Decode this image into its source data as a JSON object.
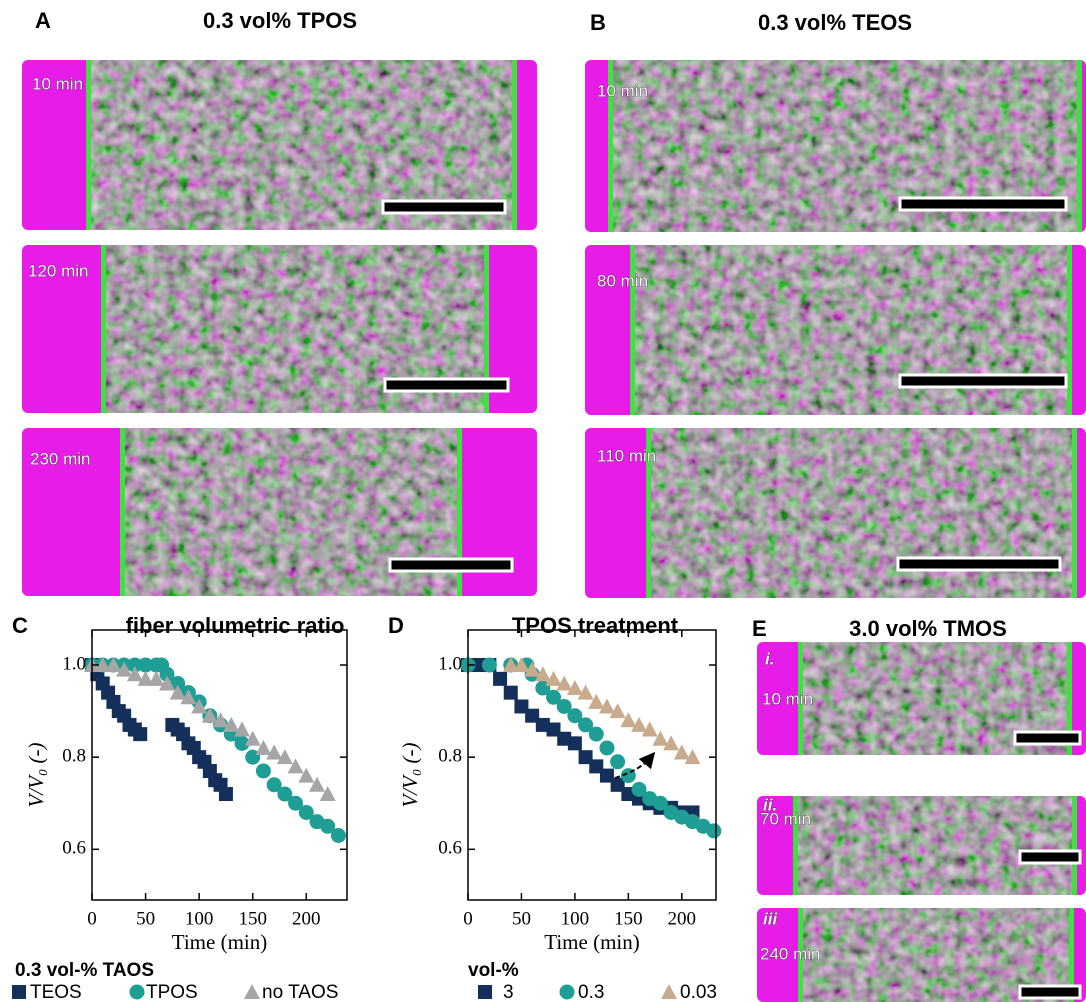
{
  "panels": {
    "A": {
      "label": "A",
      "title": "0.3 vol% TPOS",
      "images": [
        "10 min",
        "120 min",
        "230 min"
      ]
    },
    "B": {
      "label": "B",
      "title": "0.3 vol% TEOS",
      "images": [
        "10 min",
        "80 min",
        "110 min"
      ]
    },
    "E": {
      "label": "E",
      "title": "3.0 vol% TMOS",
      "images": [
        {
          "index": "i.",
          "time": "10 min"
        },
        {
          "index": "ii.",
          "time": "70 min"
        },
        {
          "index": "iii",
          "time": "240 min"
        }
      ]
    }
  },
  "chart_data": [
    {
      "type": "scatter",
      "panel_label": "C",
      "title": "fiber volumetric ratio",
      "x_label": "Time (min)",
      "y_label": "V/V₀ (-)",
      "xlim": [
        0,
        238
      ],
      "ylim": [
        0.49,
        1.076
      ],
      "xticks": [
        0,
        50,
        100,
        150,
        200
      ],
      "yticks": [
        {
          "value": 1,
          "label": "1.0"
        },
        0.8,
        0.6
      ],
      "legend_title": "0.3 vol-% TAOS",
      "series": [
        {
          "name": "TEOS",
          "color": "#14305a",
          "marker": "square",
          "x": [
            0,
            5,
            10,
            15,
            20,
            25,
            30,
            35,
            40,
            45,
            75,
            80,
            85,
            90,
            95,
            100,
            105,
            110,
            115,
            120,
            125
          ],
          "values": [
            1.0,
            0.98,
            0.96,
            0.94,
            0.92,
            0.9,
            0.89,
            0.87,
            0.86,
            0.85,
            0.87,
            0.86,
            0.85,
            0.83,
            0.82,
            0.8,
            0.79,
            0.77,
            0.75,
            0.74,
            0.72
          ]
        },
        {
          "name": "TPOS",
          "color": "#1e9e94",
          "marker": "circle",
          "x": [
            0,
            10,
            20,
            30,
            40,
            50,
            60,
            65,
            70,
            80,
            90,
            100,
            110,
            120,
            130,
            140,
            150,
            160,
            170,
            180,
            190,
            200,
            210,
            220,
            230
          ],
          "values": [
            1.0,
            1.0,
            1.0,
            1.0,
            1.0,
            1.0,
            1.0,
            1.0,
            0.98,
            0.96,
            0.94,
            0.92,
            0.89,
            0.87,
            0.85,
            0.83,
            0.8,
            0.77,
            0.74,
            0.72,
            0.7,
            0.68,
            0.66,
            0.65,
            0.63
          ]
        },
        {
          "name": "no TAOS",
          "color": "#a6a6a6",
          "marker": "triangle",
          "x": [
            0,
            10,
            20,
            30,
            40,
            50,
            60,
            70,
            80,
            90,
            100,
            110,
            120,
            130,
            140,
            150,
            160,
            170,
            180,
            190,
            200,
            210,
            220
          ],
          "values": [
            1.0,
            1.0,
            1.0,
            0.99,
            0.98,
            0.97,
            0.97,
            0.96,
            0.94,
            0.93,
            0.91,
            0.89,
            0.88,
            0.87,
            0.86,
            0.84,
            0.82,
            0.81,
            0.8,
            0.78,
            0.76,
            0.74,
            0.72
          ]
        }
      ]
    },
    {
      "type": "scatter",
      "panel_label": "D",
      "title": "TPOS treatment",
      "x_label": "Time (min)",
      "y_label": "V/V₀ (-)",
      "xlim": [
        0,
        232
      ],
      "ylim": [
        0.49,
        1.076
      ],
      "xticks": [
        0,
        50,
        100,
        150,
        200
      ],
      "yticks": [
        {
          "value": 1,
          "label": "1.0"
        },
        0.8,
        0.6
      ],
      "legend_title": "vol-%",
      "series": [
        {
          "name": "3",
          "color": "#14305a",
          "marker": "square",
          "x": [
            0,
            10,
            20,
            30,
            40,
            50,
            60,
            70,
            80,
            90,
            100,
            110,
            120,
            130,
            140,
            150,
            160,
            170,
            180,
            190,
            200,
            210
          ],
          "values": [
            1.0,
            1.0,
            1.0,
            0.97,
            0.94,
            0.91,
            0.89,
            0.87,
            0.86,
            0.84,
            0.83,
            0.8,
            0.78,
            0.76,
            0.74,
            0.72,
            0.71,
            0.7,
            0.69,
            0.69,
            0.68,
            0.68
          ]
        },
        {
          "name": "0.3",
          "color": "#1e9e94",
          "marker": "circle",
          "x": [
            0,
            20,
            40,
            55,
            60,
            70,
            80,
            90,
            100,
            110,
            120,
            130,
            140,
            150,
            160,
            170,
            180,
            190,
            200,
            210,
            220,
            230
          ],
          "values": [
            1.0,
            1.0,
            1.0,
            1.0,
            0.98,
            0.95,
            0.93,
            0.91,
            0.89,
            0.87,
            0.85,
            0.82,
            0.79,
            0.76,
            0.73,
            0.71,
            0.7,
            0.68,
            0.67,
            0.66,
            0.65,
            0.64
          ]
        },
        {
          "name": "0.03",
          "color": "#c8ab8c",
          "marker": "triangle",
          "x": [
            40,
            50,
            60,
            70,
            80,
            90,
            100,
            110,
            120,
            130,
            140,
            150,
            160,
            170,
            180,
            190,
            200,
            210
          ],
          "values": [
            1.0,
            1.0,
            0.99,
            0.98,
            0.97,
            0.96,
            0.95,
            0.94,
            0.92,
            0.91,
            0.9,
            0.88,
            0.87,
            0.86,
            0.84,
            0.83,
            0.81,
            0.8
          ]
        }
      ]
    }
  ]
}
